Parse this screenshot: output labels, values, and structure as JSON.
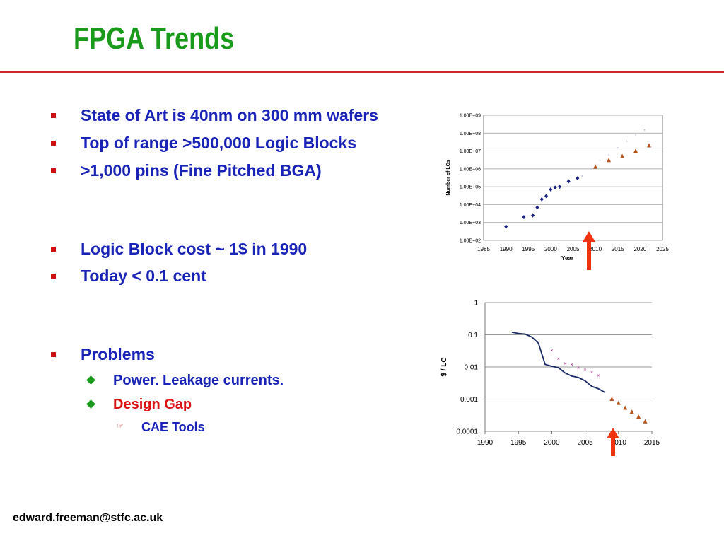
{
  "slide": {
    "title": "FPGA Trends",
    "footer_email": "edward.freeman@stfc.ac.uk",
    "accent_title": "#1a9a1a",
    "accent_rule": "#cc2a2a",
    "text_color": "#1a23b8",
    "highlight_color": "#dd1111"
  },
  "bullets": [
    {
      "text": "State of Art is 40nm on 300 mm wafers"
    },
    {
      "text": "Top of range >500,000 Logic Blocks"
    },
    {
      "text": ">1,000 pins (Fine Pitched BGA)"
    },
    {
      "text": "Logic Block cost ~ 1$ in 1990"
    },
    {
      "text": "Today < 0.1 cent"
    },
    {
      "text": "Problems"
    }
  ],
  "sub_bullets": [
    {
      "text": "Power. Leakage currents."
    },
    {
      "text": "Design Gap"
    }
  ],
  "sub_sub_bullets": [
    {
      "text": "CAE Tools"
    }
  ],
  "chart_data": [
    {
      "type": "scatter",
      "title": "",
      "xlabel": "Year",
      "ylabel": "Number of LCs",
      "xlim": [
        1985,
        2025
      ],
      "ylim": [
        100,
        1000000000
      ],
      "yscale": "log",
      "xticks": [
        "1985",
        "1990",
        "1995",
        "2000",
        "2005",
        "2010",
        "2015",
        "2020",
        "2025"
      ],
      "yticks": [
        "1.00E+02",
        "1.00E+03",
        "1.00E+04",
        "1.00E+05",
        "1.00E+06",
        "1.00E+07",
        "1.00E+08",
        "1.00E+09"
      ],
      "grid": true,
      "series": [
        {
          "marker": "diamond",
          "color": "#1a2080",
          "x": [
            1990,
            1994,
            1996,
            1997,
            1998,
            1999,
            2000,
            2001,
            2002,
            2004,
            2006
          ],
          "y": [
            600,
            2000,
            2500,
            7000,
            20000,
            30000,
            70000,
            90000,
            100000,
            200000,
            300000
          ]
        },
        {
          "marker": "triangle",
          "color": "#b5541c",
          "x": [
            2010,
            2013,
            2016,
            2019,
            2022
          ],
          "y": [
            1300000,
            3000000,
            5000000,
            10000000,
            20000000
          ]
        },
        {
          "marker": "dot",
          "color": "#b9bcd6",
          "x": [
            2007,
            2009,
            2011,
            2013,
            2015,
            2017,
            2019,
            2021
          ],
          "y": [
            400000,
            1000000,
            3000000,
            6000000,
            15000000,
            35000000,
            80000000,
            150000000
          ]
        }
      ]
    },
    {
      "type": "line",
      "title": "",
      "xlabel": "",
      "ylabel": "$ / LC",
      "xlim": [
        1990,
        2015
      ],
      "ylim": [
        0.0001,
        1
      ],
      "yscale": "log",
      "xticks": [
        "1990",
        "1995",
        "2000",
        "2005",
        "2010",
        "2015"
      ],
      "yticks": [
        "0.0001",
        "0.001",
        "0.01",
        "0.1",
        "1"
      ],
      "grid": true,
      "series": [
        {
          "style": "line",
          "color": "#1a2a66",
          "x": [
            1994,
            1995,
            1996,
            1997,
            1998,
            1999,
            2000,
            2001,
            2002,
            2003,
            2004,
            2005,
            2006,
            2007,
            2008
          ],
          "y": [
            0.12,
            0.11,
            0.105,
            0.085,
            0.055,
            0.012,
            0.0105,
            0.0095,
            0.0065,
            0.0052,
            0.0047,
            0.0037,
            0.0025,
            0.0021,
            0.0016
          ]
        },
        {
          "style": "x",
          "color": "#aa2288",
          "x": [
            2000,
            2001,
            2002,
            2003,
            2004,
            2005,
            2006,
            2007
          ],
          "y": [
            0.033,
            0.018,
            0.013,
            0.012,
            0.0095,
            0.0082,
            0.0068,
            0.0055
          ]
        },
        {
          "style": "triangle",
          "color": "#b5541c",
          "x": [
            2009,
            2010,
            2011,
            2012,
            2013,
            2014
          ],
          "y": [
            0.001,
            0.00075,
            0.00053,
            0.0004,
            0.00028,
            0.0002
          ]
        }
      ]
    }
  ]
}
